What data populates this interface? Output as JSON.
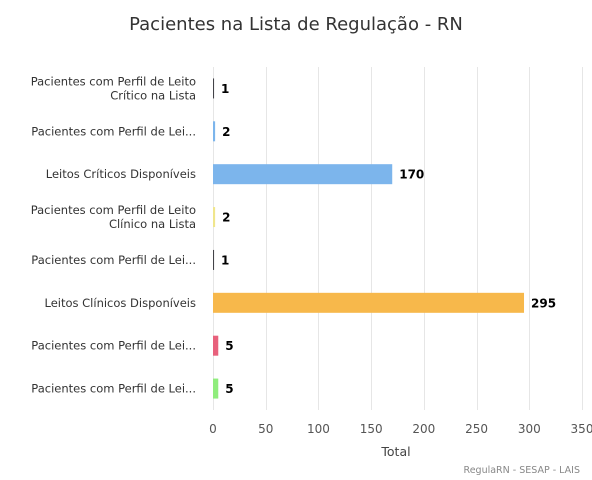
{
  "chart_data": {
    "type": "bar",
    "orientation": "horizontal",
    "title": "Pacientes na Lista de Regulação - RN",
    "xlabel": "Total",
    "ylabel": "",
    "xlim": [
      0,
      350
    ],
    "x_ticks": [
      0,
      50,
      100,
      150,
      200,
      250,
      300,
      350
    ],
    "grid": true,
    "categories": [
      [
        "Pacientes com Perfil de Leito",
        "Crítico na Lista"
      ],
      [
        "Pacientes com Perfil de Lei..."
      ],
      [
        "Leitos Críticos Disponíveis"
      ],
      [
        "Pacientes com Perfil de Leito",
        "Clínico na Lista"
      ],
      [
        "Pacientes com Perfil de Lei..."
      ],
      [
        "Leitos Clínicos Disponíveis"
      ],
      [
        "Pacientes com Perfil de Lei..."
      ],
      [
        "Pacientes com Perfil de Lei..."
      ]
    ],
    "values": [
      1,
      2,
      170,
      2,
      1,
      295,
      5,
      5
    ],
    "colors": [
      "#434348",
      "#7cb5ec",
      "#7cb5ec",
      "#f0e68c",
      "#434348",
      "#f7b84b",
      "#e8617c",
      "#90ed7d"
    ],
    "credit": "RegulaRN - SESAP - LAIS"
  }
}
